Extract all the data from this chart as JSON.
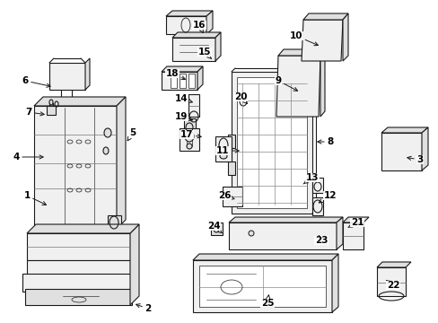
{
  "bg": "#ffffff",
  "lc": "#1a1a1a",
  "fc": "#f0f0f0",
  "fc2": "#e0e0e0",
  "lw": 0.8,
  "fs": 7.5,
  "labels": [
    [
      "1",
      30,
      218,
      55,
      230
    ],
    [
      "2",
      165,
      344,
      148,
      338
    ],
    [
      "3",
      468,
      178,
      450,
      175
    ],
    [
      "4",
      18,
      175,
      52,
      175
    ],
    [
      "5",
      148,
      148,
      140,
      160
    ],
    [
      "6",
      28,
      90,
      60,
      97
    ],
    [
      "7",
      32,
      125,
      53,
      128
    ],
    [
      "8",
      368,
      158,
      350,
      158
    ],
    [
      "9",
      310,
      90,
      335,
      103
    ],
    [
      "10",
      330,
      40,
      358,
      52
    ],
    [
      "11",
      248,
      168,
      270,
      168
    ],
    [
      "12",
      368,
      218,
      352,
      228
    ],
    [
      "13",
      348,
      198,
      338,
      205
    ],
    [
      "14",
      202,
      110,
      218,
      115
    ],
    [
      "15",
      228,
      58,
      238,
      68
    ],
    [
      "16",
      222,
      28,
      228,
      40
    ],
    [
      "17",
      208,
      150,
      228,
      153
    ],
    [
      "18",
      192,
      82,
      210,
      90
    ],
    [
      "19",
      202,
      130,
      218,
      135
    ],
    [
      "20",
      268,
      108,
      278,
      118
    ],
    [
      "21",
      398,
      248,
      385,
      255
    ],
    [
      "22",
      438,
      318,
      430,
      312
    ],
    [
      "23",
      358,
      268,
      355,
      262
    ],
    [
      "24",
      238,
      252,
      250,
      262
    ],
    [
      "25",
      298,
      338,
      300,
      325
    ],
    [
      "26",
      250,
      218,
      262,
      222
    ]
  ]
}
